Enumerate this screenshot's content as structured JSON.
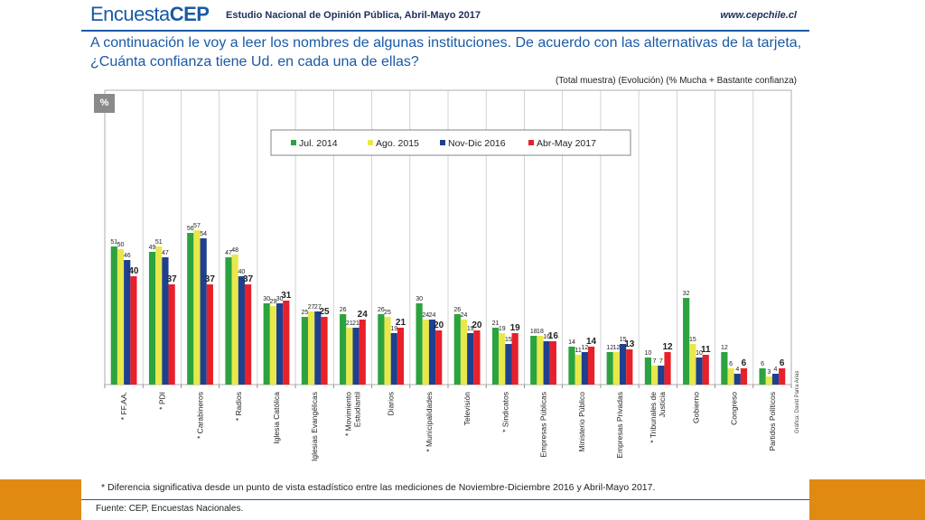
{
  "header": {
    "brand_light": "Encuesta",
    "brand_bold": "CEP",
    "study": "Estudio Nacional de Opinión Pública, Abril-Mayo 2017",
    "url": "www.cepchile.cl"
  },
  "question": "A continuación le voy a leer los nombres de algunas instituciones. De acuerdo con las alternativas de la tarjeta, ¿Cuánta confianza tiene Ud. en cada una de ellas?",
  "subtitle": "(Total muestra) (Evolución) (% Mucha + Bastante confianza)",
  "unit_label": "%",
  "footnote": "* Diferencia significativa desde un punto de vista estadístico entre las mediciones de Noviembre-Diciembre 2016 y Abril-Mayo 2017.",
  "source": "Fuente: CEP, Encuestas Nacionales.",
  "credit": "Gráfica: David Parra Arias",
  "chart_data": {
    "type": "bar",
    "categories": [
      [
        "* FF.AA."
      ],
      [
        "* PDI"
      ],
      [
        "* Carabineros"
      ],
      [
        "* Radios"
      ],
      [
        "Iglesia Católica"
      ],
      [
        "Iglesias Evangélicas"
      ],
      [
        "* Movimiento",
        "Estudiantil"
      ],
      [
        "Diarios"
      ],
      [
        "* Municipalidades"
      ],
      [
        "Televisión"
      ],
      [
        "* Sindicatos"
      ],
      [
        "Empresas Públicas"
      ],
      [
        "Ministerio Público"
      ],
      [
        "Empresas Privadas"
      ],
      [
        "* Tribunales de",
        "Justicia"
      ],
      [
        "Gobierno"
      ],
      [
        "Congreso"
      ],
      [
        "Partidos Políticos"
      ]
    ],
    "series": [
      {
        "name": "Jul. 2014",
        "color": "#2ca33e",
        "values": [
          51,
          49,
          56,
          47,
          30,
          25,
          26,
          26,
          30,
          26,
          21,
          18,
          14,
          12,
          10,
          32,
          12,
          6
        ]
      },
      {
        "name": "Ago. 2015",
        "color": "#e8e84a",
        "values": [
          50,
          51,
          57,
          48,
          29,
          27,
          21,
          25,
          24,
          24,
          19,
          18,
          11,
          12,
          7,
          15,
          6,
          3
        ]
      },
      {
        "name": "Nov-Dic 2016",
        "color": "#1f3f8f",
        "values": [
          46,
          47,
          54,
          40,
          30,
          27,
          21,
          19,
          24,
          19,
          15,
          16,
          12,
          15,
          7,
          10,
          4,
          4
        ]
      },
      {
        "name": "Abr-May 2017",
        "color": "#e8202a",
        "values": [
          40,
          37,
          37,
          37,
          31,
          25,
          24,
          21,
          20,
          20,
          19,
          16,
          14,
          13,
          12,
          11,
          6,
          6
        ]
      }
    ],
    "legend_position": "top-center",
    "last_series_labels_bold": true
  }
}
